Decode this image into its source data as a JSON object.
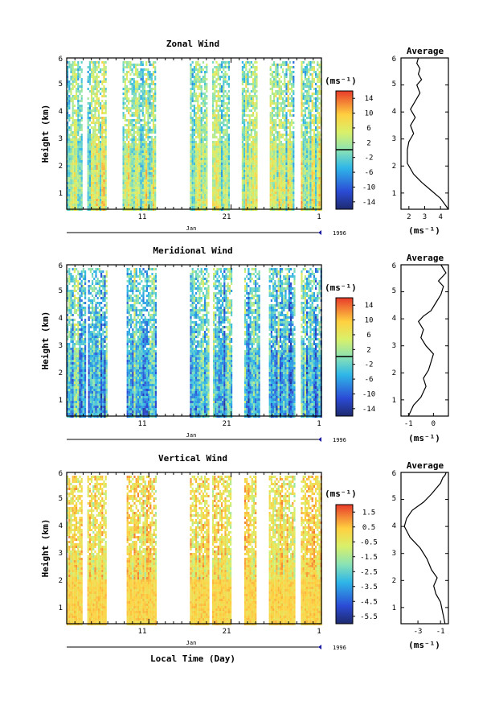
{
  "panels": [
    {
      "title": "Zonal Wind",
      "avg_title": "Average",
      "ylabel": "Height (km)",
      "cbar_unit": "(ms⁻¹)",
      "cbar_ticks": [
        "14",
        "10",
        "6",
        "2",
        "-2",
        "-6",
        "-10",
        "-14"
      ],
      "avg_xticks": [
        "2",
        "3",
        "4"
      ],
      "avg_xlabel": "(ms⁻¹)",
      "month_label": "Jan",
      "year_label": "1996"
    },
    {
      "title": "Meridional Wind",
      "avg_title": "Average",
      "ylabel": "Height (km)",
      "cbar_unit": "(ms⁻¹)",
      "cbar_ticks": [
        "14",
        "10",
        "6",
        "2",
        "-2",
        "-6",
        "-10",
        "-14"
      ],
      "avg_xticks": [
        "-1",
        "0"
      ],
      "avg_xlabel": "(ms⁻¹)",
      "month_label": "Jan",
      "year_label": "1996"
    },
    {
      "title": "Vertical Wind",
      "avg_title": "Average",
      "ylabel": "Height (km)",
      "cbar_unit": "(ms⁻¹)",
      "cbar_ticks": [
        "1.5",
        "0.5",
        "-0.5",
        "-1.5",
        "-2.5",
        "-3.5",
        "-4.5",
        "-5.5"
      ],
      "avg_xticks": [
        "-3",
        "-1"
      ],
      "avg_xlabel": "(ms⁻¹)",
      "month_label": "Jan",
      "year_label": "1996"
    }
  ],
  "xlabel": "Local Time (Day)",
  "chart_data": [
    {
      "type": "heatmap",
      "title": "Zonal Wind",
      "ylabel": "Height (km)",
      "xticks": [
        "11",
        "21",
        "1"
      ],
      "yticks": [
        "1",
        "2",
        "3",
        "4",
        "5",
        "6"
      ],
      "ylim": [
        0.4,
        6
      ],
      "colorbar_ticks": [
        14,
        10,
        6,
        2,
        -2,
        -6,
        -10,
        -14
      ],
      "colorbar_range": [
        -16,
        16
      ],
      "data_segments_day": [
        [
          1,
          2.9
        ],
        [
          3.5,
          5.7
        ],
        [
          7.8,
          11.8
        ],
        [
          16,
          18
        ],
        [
          18.7,
          20.8
        ],
        [
          22.3,
          24.1
        ],
        [
          25.7,
          28.7
        ],
        [
          29.5,
          32
        ]
      ],
      "profile": {
        "title": "Average",
        "xticks": [
          2,
          3,
          4
        ],
        "xlim": [
          1.5,
          4.5
        ],
        "x": [
          4.5,
          4.0,
          3.4,
          2.8,
          2.3,
          1.9,
          1.9,
          2.0,
          2.3,
          2.1,
          2.4,
          2.1,
          2.4,
          2.7,
          2.5,
          2.8,
          2.6,
          2.7,
          2.5,
          2.6
        ],
        "y": [
          0.4,
          0.8,
          1.1,
          1.4,
          1.7,
          2.1,
          2.6,
          2.9,
          3.2,
          3.5,
          3.8,
          4.1,
          4.4,
          4.7,
          5.0,
          5.2,
          5.4,
          5.6,
          5.8,
          6.0
        ]
      }
    },
    {
      "type": "heatmap",
      "title": "Meridional Wind",
      "ylabel": "Height (km)",
      "xticks": [
        "11",
        "21",
        "1"
      ],
      "yticks": [
        "1",
        "2",
        "3",
        "4",
        "5",
        "6"
      ],
      "ylim": [
        0.4,
        6
      ],
      "colorbar_ticks": [
        14,
        10,
        6,
        2,
        -2,
        -6,
        -10,
        -14
      ],
      "colorbar_range": [
        -16,
        16
      ],
      "data_segments_day": [
        [
          1,
          3.2
        ],
        [
          3.6,
          5.9
        ],
        [
          8.3,
          11.8
        ],
        [
          16,
          18.3
        ],
        [
          18.8,
          21
        ],
        [
          22.6,
          24.4
        ],
        [
          25.6,
          28.7
        ],
        [
          29.5,
          32
        ]
      ],
      "profile": {
        "title": "Average",
        "xticks": [
          -1,
          0
        ],
        "xlim": [
          -1.3,
          0.6
        ],
        "x": [
          -1.0,
          -0.8,
          -0.5,
          -0.3,
          -0.4,
          -0.2,
          -0.1,
          0.0,
          -0.3,
          -0.5,
          -0.4,
          -0.6,
          -0.4,
          -0.1,
          0.1,
          0.3,
          0.4,
          0.2,
          0.5,
          0.3
        ],
        "y": [
          0.4,
          0.8,
          1.1,
          1.5,
          1.8,
          2.1,
          2.4,
          2.7,
          3.0,
          3.3,
          3.6,
          3.9,
          4.1,
          4.3,
          4.6,
          4.9,
          5.2,
          5.4,
          5.7,
          6.0
        ]
      }
    },
    {
      "type": "heatmap",
      "title": "Vertical Wind",
      "ylabel": "Height (km)",
      "xticks": [
        "11",
        "21",
        "1"
      ],
      "yticks": [
        "1",
        "2",
        "3",
        "4",
        "5",
        "6"
      ],
      "ylim": [
        0.4,
        6
      ],
      "colorbar_ticks": [
        1.5,
        0.5,
        -0.5,
        -1.5,
        -2.5,
        -3.5,
        -4.5,
        -5.5
      ],
      "colorbar_range": [
        -6,
        2
      ],
      "data_segments_day": [
        [
          1,
          2.9
        ],
        [
          3.5,
          5.7
        ],
        [
          8.3,
          11.8
        ],
        [
          16,
          18.2
        ],
        [
          18.7,
          20.9
        ],
        [
          22.6,
          24.1
        ],
        [
          25.6,
          28.7
        ],
        [
          29.5,
          32
        ]
      ],
      "profile": {
        "title": "Average",
        "xticks": [
          -3,
          -1
        ],
        "xlim": [
          -4.5,
          -0.3
        ],
        "x": [
          -0.6,
          -0.8,
          -1.0,
          -1.4,
          -1.6,
          -1.3,
          -1.8,
          -2.2,
          -2.8,
          -3.7,
          -4.2,
          -4.0,
          -3.5,
          -2.5,
          -1.8,
          -1.4,
          -1.0,
          -0.8,
          -0.6,
          -0.5
        ],
        "y": [
          0.4,
          0.8,
          1.2,
          1.5,
          1.8,
          2.1,
          2.4,
          2.8,
          3.2,
          3.6,
          4.0,
          4.3,
          4.6,
          4.9,
          5.2,
          5.4,
          5.6,
          5.8,
          5.9,
          6.0
        ]
      }
    }
  ]
}
